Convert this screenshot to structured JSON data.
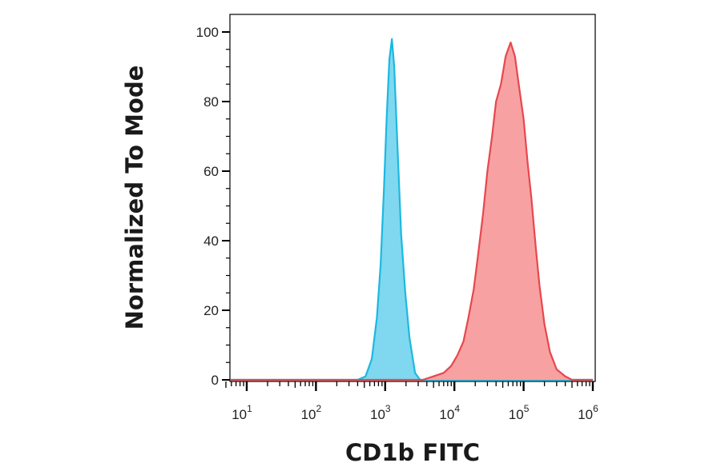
{
  "chart_data": {
    "type": "area",
    "title": "",
    "xlabel": "CD1b FITC",
    "ylabel": "Normalized To Mode",
    "x_scale": "log",
    "xlim": [
      5,
      1000000
    ],
    "ylim": [
      0,
      105
    ],
    "grid": false,
    "x_tick_labels": [
      {
        "value": 10,
        "base": "10",
        "exp": "1"
      },
      {
        "value": 100,
        "base": "10",
        "exp": "2"
      },
      {
        "value": 1000,
        "base": "10",
        "exp": "3"
      },
      {
        "value": 10000,
        "base": "10",
        "exp": "4"
      },
      {
        "value": 100000,
        "base": "10",
        "exp": "5"
      },
      {
        "value": 1000000,
        "base": "10",
        "exp": "6"
      }
    ],
    "y_ticks": [
      0,
      20,
      40,
      60,
      80,
      100
    ],
    "y_tick_labels": [
      "0",
      "20",
      "40",
      "60",
      "80",
      "100"
    ],
    "series": [
      {
        "fill": "#7fd8ef",
        "stroke": "#1cb8e0",
        "x": [
          5,
          400,
          520,
          640,
          760,
          860,
          960,
          1050,
          1150,
          1250,
          1350,
          1500,
          1700,
          1950,
          2250,
          2700,
          3200,
          1000000
        ],
        "y": [
          0,
          0,
          1,
          6,
          18,
          33,
          55,
          75,
          92,
          98,
          90,
          68,
          42,
          25,
          12,
          2,
          0,
          0
        ]
      },
      {
        "fill": "#f7a1a3",
        "stroke": "#e8474c",
        "x": [
          5,
          3500,
          5000,
          7000,
          9000,
          11000,
          13500,
          16000,
          19000,
          22000,
          26000,
          30000,
          35000,
          40000,
          47000,
          55000,
          65000,
          75000,
          85000,
          100000,
          115000,
          130000,
          150000,
          170000,
          200000,
          240000,
          300000,
          400000,
          500000,
          1000000
        ],
        "y": [
          0,
          0,
          1,
          2,
          4,
          7,
          11,
          18,
          26,
          36,
          48,
          60,
          70,
          80,
          85,
          93,
          97,
          93,
          85,
          75,
          62,
          52,
          38,
          27,
          16,
          8,
          3,
          1,
          0,
          0
        ]
      }
    ]
  }
}
